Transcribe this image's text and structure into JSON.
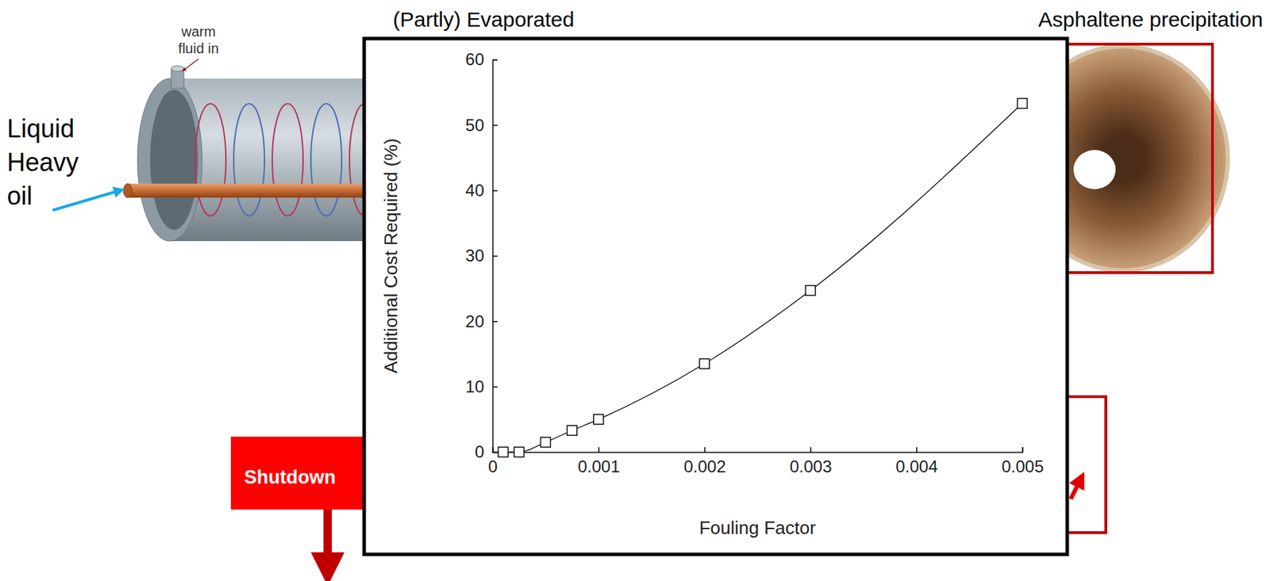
{
  "chart_data": {
    "type": "line",
    "x_label": "Fouling Factor",
    "y_label": "Additional Cost Required (%)",
    "x": [
      0.0001,
      0.00025,
      0.0005,
      0.00075,
      0.001,
      0.002,
      0.003,
      0.005
    ],
    "values": [
      0,
      0,
      1.5,
      3.3,
      5,
      13.5,
      24.7,
      53.3
    ],
    "color": "#000000",
    "marker": "square",
    "line_style": "solid",
    "grid": false,
    "xlim": [
      0,
      0.005
    ],
    "xticks": [
      0,
      0.001,
      0.002,
      0.003,
      0.004,
      0.005
    ],
    "ylim": [
      0,
      60
    ],
    "yticks": [
      0,
      10,
      20,
      30,
      40,
      50,
      60
    ]
  },
  "diagram": {
    "warm_fluid_label": "warm fluid in",
    "feed_label": "Liquid Heavy oil",
    "top_label": "(Partly) Evaporated",
    "photo_label": "Asphaltene precipitation",
    "alarm_label": "Shutdown"
  }
}
